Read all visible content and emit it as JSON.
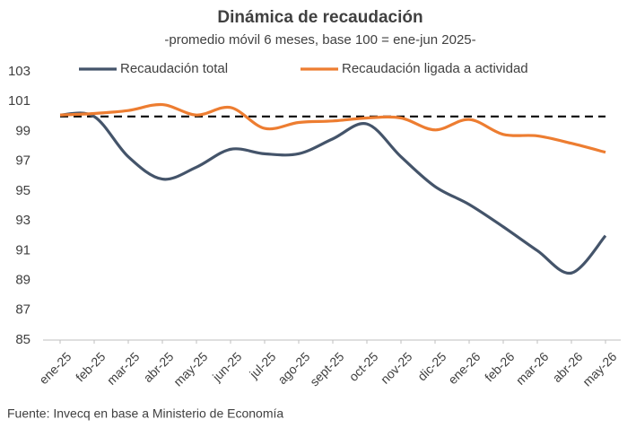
{
  "chart_data": {
    "type": "line",
    "title": "Dinámica de recaudación",
    "subtitle": "-promedio móvil 6 meses, base 100 = ene-jun 2025-",
    "source": "Fuente: Invecq en base a Ministerio de Economía",
    "categories": [
      "ene-25",
      "feb-25",
      "mar-25",
      "abr-25",
      "may-25",
      "jun-25",
      "jul-25",
      "ago-25",
      "sept-25",
      "oct-25",
      "nov-25",
      "dic-25",
      "ene-26",
      "feb-26",
      "mar-26",
      "abr-26",
      "may-26"
    ],
    "series": [
      {
        "name": "Recaudación total",
        "color": "#44546a",
        "values": [
          100.1,
          100.0,
          97.3,
          95.8,
          96.6,
          97.8,
          97.5,
          97.5,
          98.5,
          99.5,
          97.3,
          95.3,
          94.1,
          92.6,
          91.0,
          89.5,
          92.0
        ]
      },
      {
        "name": "Recaudación ligada a actividad",
        "color": "#ed7d31",
        "values": [
          100.1,
          100.2,
          100.4,
          100.8,
          100.1,
          100.6,
          99.2,
          99.6,
          99.7,
          99.9,
          99.9,
          99.1,
          99.8,
          98.8,
          98.7,
          98.2,
          97.6
        ]
      }
    ],
    "reference_line": 100,
    "ylim": [
      85,
      103
    ],
    "yticks": [
      85,
      87,
      89,
      91,
      93,
      95,
      97,
      99,
      101,
      103
    ],
    "grid": false,
    "legend": "top"
  }
}
